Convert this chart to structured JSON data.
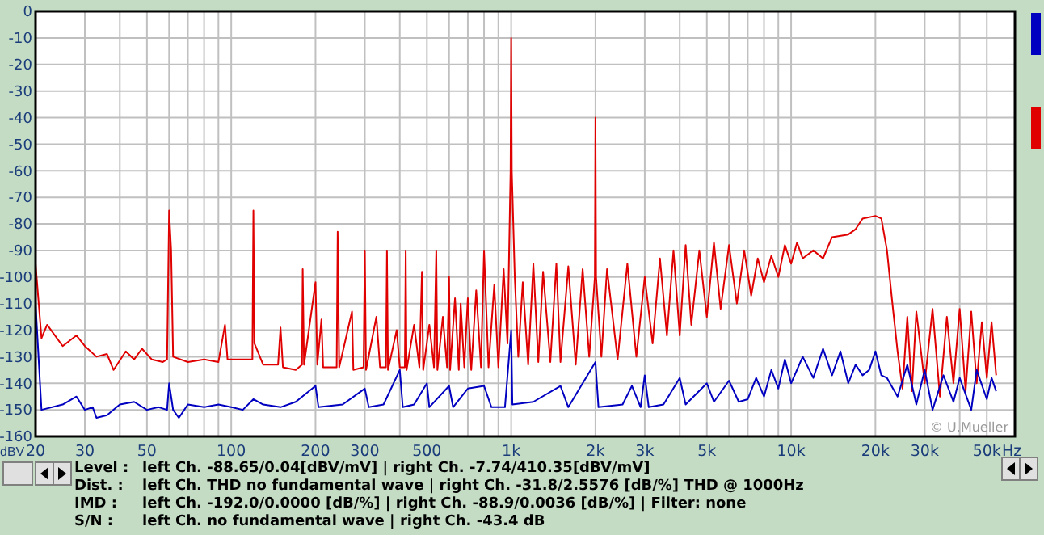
{
  "chart_data": {
    "type": "line",
    "xlabel": "Hz",
    "ylabel": "dBV",
    "log": "x",
    "grid": true,
    "line_style": "solid",
    "marker": "none",
    "xlim": [
      20,
      63000
    ],
    "ylim": [
      -160,
      0
    ],
    "xticks": [
      20,
      30,
      {
        "value": 40,
        "label": null
      },
      50,
      {
        "value": 60,
        "label": null
      },
      {
        "value": 70,
        "label": null
      },
      {
        "value": 80,
        "label": null
      },
      {
        "value": 90,
        "label": null
      },
      100,
      200,
      300,
      {
        "value": 400,
        "label": null
      },
      500,
      {
        "value": 600,
        "label": null
      },
      {
        "value": 700,
        "label": null
      },
      {
        "value": 800,
        "label": null
      },
      {
        "value": 900,
        "label": null
      },
      {
        "value": 1000,
        "label": "1k"
      },
      {
        "value": 2000,
        "label": "2k"
      },
      {
        "value": 3000,
        "label": "3k"
      },
      {
        "value": 4000,
        "label": null
      },
      {
        "value": 5000,
        "label": "5k"
      },
      {
        "value": 6000,
        "label": null
      },
      {
        "value": 7000,
        "label": null
      },
      {
        "value": 8000,
        "label": null
      },
      {
        "value": 9000,
        "label": null
      },
      {
        "value": 10000,
        "label": "10k"
      },
      {
        "value": 20000,
        "label": "20k"
      },
      {
        "value": 30000,
        "label": "30k"
      },
      {
        "value": 40000,
        "label": null
      },
      {
        "value": 50000,
        "label": "50k"
      }
    ],
    "yticks": [
      0,
      -10,
      -20,
      -30,
      -40,
      -50,
      -60,
      -70,
      -80,
      -90,
      -100,
      -110,
      -120,
      -130,
      -140,
      -150,
      -160
    ],
    "series": [
      {
        "color": "#e00000",
        "x": [
          20,
          21,
          22,
          25,
          28,
          30,
          33,
          36,
          38,
          42,
          45,
          48,
          52,
          57,
          59,
          60,
          61,
          62,
          70,
          80,
          90,
          95,
          97,
          110,
          119,
          120,
          121,
          130,
          147,
          150,
          153,
          170,
          179,
          180,
          182,
          200,
          203,
          210,
          213,
          238,
          240,
          243,
          270,
          273,
          297,
          300,
          303,
          330,
          340,
          357,
          360,
          363,
          390,
          400,
          417,
          420,
          423,
          450,
          470,
          480,
          485,
          510,
          530,
          540,
          545,
          570,
          590,
          600,
          605,
          630,
          650,
          660,
          680,
          700,
          720,
          750,
          780,
          800,
          830,
          870,
          900,
          940,
          970,
          995,
          1000,
          1005,
          1030,
          1060,
          1100,
          1150,
          1200,
          1250,
          1300,
          1380,
          1450,
          1500,
          1600,
          1700,
          1800,
          1900,
          1990,
          2000,
          2010,
          2100,
          2200,
          2400,
          2600,
          2800,
          3000,
          3200,
          3400,
          3600,
          3800,
          4000,
          4200,
          4400,
          4700,
          5000,
          5300,
          5600,
          6000,
          6400,
          6800,
          7200,
          7600,
          8000,
          8500,
          9000,
          9500,
          10000,
          10500,
          11000,
          12000,
          13000,
          14000,
          16000,
          17000,
          18000,
          20000,
          21000,
          22000,
          23000,
          24000,
          25000,
          26000,
          27000,
          28000,
          30000,
          32000,
          34000,
          36000,
          38000,
          40000,
          42000,
          44000,
          46000,
          48000,
          50000,
          52000,
          54000
        ],
        "values": [
          -95,
          -123,
          -118,
          -126,
          -122,
          -126,
          -130,
          -129,
          -135,
          -128,
          -131,
          -127,
          -131,
          -132,
          -131,
          -75,
          -90,
          -130,
          -132,
          -131,
          -132,
          -118,
          -131,
          -131,
          -131,
          -75,
          -125,
          -133,
          -133,
          -119,
          -134,
          -135,
          -133,
          -97,
          -133,
          -102,
          -133,
          -116,
          -134,
          -134,
          -83,
          -134,
          -113,
          -135,
          -134,
          -90,
          -135,
          -115,
          -134,
          -134,
          -90,
          -135,
          -120,
          -134,
          -134,
          -90,
          -135,
          -118,
          -134,
          -98,
          -135,
          -118,
          -134,
          -90,
          -135,
          -115,
          -134,
          -100,
          -135,
          -108,
          -135,
          -110,
          -134,
          -108,
          -135,
          -105,
          -134,
          -90,
          -134,
          -103,
          -134,
          -97,
          -125,
          -60,
          -10,
          -60,
          -100,
          -130,
          -102,
          -133,
          -95,
          -132,
          -98,
          -132,
          -95,
          -132,
          -96,
          -133,
          -97,
          -130,
          -100,
          -40,
          -100,
          -130,
          -97,
          -131,
          -95,
          -130,
          -100,
          -125,
          -93,
          -122,
          -90,
          -122,
          -88,
          -118,
          -90,
          -115,
          -87,
          -112,
          -88,
          -110,
          -90,
          -107,
          -93,
          -102,
          -92,
          -100,
          -88,
          -95,
          -87,
          -93,
          -90,
          -93,
          -85,
          -84,
          -82,
          -78,
          -77,
          -78,
          -90,
          -110,
          -128,
          -142,
          -115,
          -143,
          -113,
          -140,
          -112,
          -145,
          -115,
          -140,
          -112,
          -143,
          -113,
          -140,
          -117,
          -138,
          -117,
          -137
        ]
      },
      {
        "color": "#0000c0",
        "x": [
          20,
          21,
          25,
          28,
          30,
          32,
          33,
          36,
          40,
          45,
          50,
          55,
          59,
          60,
          62,
          65,
          70,
          80,
          90,
          100,
          110,
          120,
          130,
          150,
          170,
          200,
          205,
          250,
          300,
          310,
          350,
          400,
          410,
          450,
          500,
          510,
          600,
          620,
          700,
          800,
          850,
          950,
          1000,
          1010,
          1200,
          1500,
          1600,
          2000,
          2050,
          2500,
          2700,
          2900,
          3000,
          3100,
          3500,
          4000,
          4200,
          5000,
          5300,
          6000,
          6500,
          7000,
          7500,
          8000,
          8500,
          9000,
          9500,
          10000,
          11000,
          12000,
          13000,
          14000,
          15000,
          16000,
          17000,
          18000,
          19000,
          20000,
          21000,
          22000,
          24000,
          26000,
          28000,
          30000,
          32000,
          35000,
          38000,
          40000,
          44000,
          46000,
          50000,
          52000,
          54000
        ],
        "values": [
          -110,
          -150,
          -148,
          -145,
          -150,
          -149,
          -153,
          -152,
          -148,
          -147,
          -150,
          -149,
          -150,
          -140,
          -150,
          -153,
          -148,
          -149,
          -148,
          -149,
          -150,
          -146,
          -148,
          -149,
          -147,
          -141,
          -149,
          -148,
          -142,
          -149,
          -148,
          -135,
          -149,
          -148,
          -140,
          -149,
          -141,
          -149,
          -142,
          -141,
          -149,
          -149,
          -120,
          -148,
          -147,
          -141,
          -149,
          -132,
          -149,
          -148,
          -141,
          -149,
          -137,
          -149,
          -148,
          -138,
          -148,
          -140,
          -147,
          -139,
          -147,
          -146,
          -138,
          -145,
          -135,
          -142,
          -131,
          -140,
          -130,
          -138,
          -127,
          -137,
          -128,
          -140,
          -133,
          -137,
          -135,
          -128,
          -137,
          -138,
          -145,
          -133,
          -148,
          -135,
          -150,
          -137,
          -147,
          -138,
          -150,
          -135,
          -146,
          -138,
          -143
        ]
      }
    ],
    "annotations": [
      "Level :",
      "left Ch. -88.65/0.04[dBV/mV] | right Ch. -7.74/410.35[dBV/mV]",
      "Dist. :",
      "left Ch. THD no fundamental wave | right Ch. -31.8/2.5576 [dB/%] THD @ 1000Hz",
      "IMD :",
      "left Ch. -192.0/0.0000 [dB/%]  | right Ch. -88.9/0.0036 [dB/%] |   Filter: none",
      "S/N :",
      "left Ch.  no fundamental wave | right Ch. -43.4 dB",
      "© U.Mueller"
    ]
  }
}
